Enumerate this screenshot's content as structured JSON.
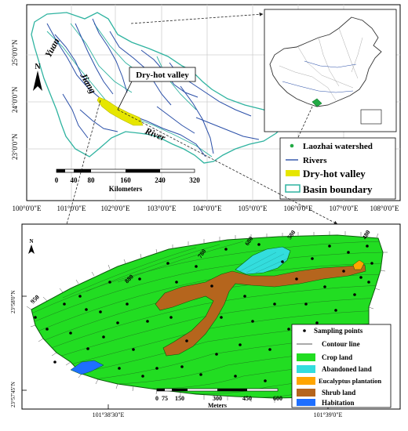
{
  "top_map": {
    "lat_labels": [
      "25°0'0\"N",
      "24°0'0\"N",
      "23°0'0\"N"
    ],
    "lon_labels": [
      "100°0'0\"E",
      "101°0'0\"E",
      "102°0'0\"E",
      "103°0'0\"E",
      "104°0'0\"E",
      "105°0'0\"E",
      "106°0'0\"E",
      "107°0'0\"E",
      "108°0'0\"E"
    ],
    "river_words": [
      "Yuan",
      "Jiang",
      "River"
    ],
    "callout": "Dry-hot valley",
    "north": "N",
    "scale": {
      "ticks": [
        "0",
        "40",
        "80",
        "160",
        "240",
        "320"
      ],
      "unit": "Kilometers"
    },
    "legend": {
      "items": [
        {
          "label": "Laozhai watershed",
          "symbol": "point",
          "color": "#22aa44"
        },
        {
          "label": "Rivers",
          "symbol": "line",
          "color": "#2a4fa8"
        },
        {
          "label": "Dry-hot valley",
          "symbol": "fill",
          "color": "#e6e600"
        },
        {
          "label": "Basin boundary",
          "symbol": "outline",
          "color": "#2fb3a0"
        }
      ]
    }
  },
  "bottom_map": {
    "lat_labels": [
      "23°58'0\"N",
      "23°57'45\"N"
    ],
    "lon_labels": [
      "101°38'30\"E",
      "101°39'0\"E"
    ],
    "contour_labels": [
      "950",
      "880",
      "780",
      "680",
      "580",
      "480"
    ],
    "north": "N",
    "scale": {
      "ticks": [
        "0",
        "75",
        "150",
        "300",
        "450",
        "600"
      ],
      "unit": "Meters"
    },
    "legend": {
      "items": [
        {
          "label": "Sampling points",
          "symbol": "point",
          "color": "#000000"
        },
        {
          "label": "Contour line",
          "symbol": "line",
          "color": "#555555"
        },
        {
          "label": "Crop land",
          "symbol": "fill",
          "color": "#22dd22"
        },
        {
          "label": "Abandoned land",
          "symbol": "fill",
          "color": "#33dddd"
        },
        {
          "label": "Eucalyptus plantation",
          "symbol": "fill",
          "color": "#ffa500"
        },
        {
          "label": "Shrub land",
          "symbol": "fill",
          "color": "#b5651d"
        },
        {
          "label": "Habitation",
          "symbol": "fill",
          "color": "#1e6fff"
        }
      ]
    }
  }
}
